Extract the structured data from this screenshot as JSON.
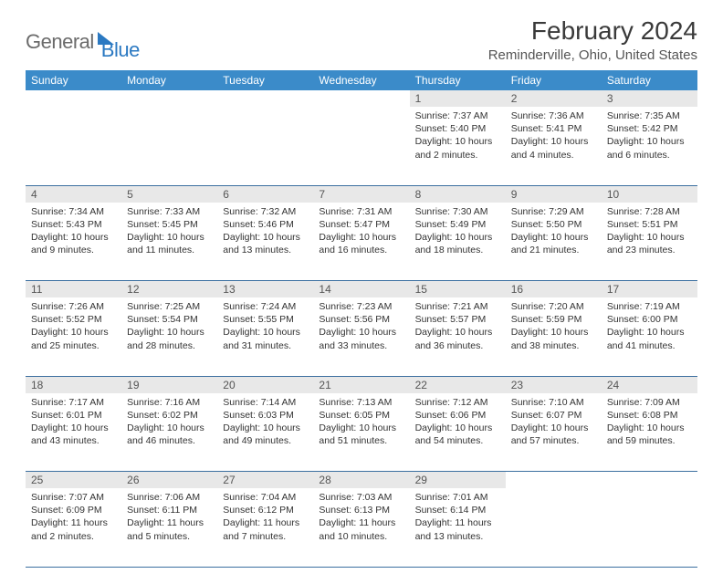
{
  "brand": {
    "part1": "General",
    "part2": "Blue"
  },
  "title": "February 2024",
  "location": "Reminderville, Ohio, United States",
  "colors": {
    "header_bg": "#3b8bc9",
    "header_text": "#ffffff",
    "daynum_bg": "#e8e8e8",
    "daynum_text": "#555555",
    "rule": "#3b6fa0",
    "body_text": "#333333",
    "brand_gray": "#6b6b6b",
    "brand_blue": "#2b79c2"
  },
  "weekdays": [
    "Sunday",
    "Monday",
    "Tuesday",
    "Wednesday",
    "Thursday",
    "Friday",
    "Saturday"
  ],
  "weeks": [
    [
      null,
      null,
      null,
      null,
      {
        "n": "1",
        "sr": "Sunrise: 7:37 AM",
        "ss": "Sunset: 5:40 PM",
        "dl": "Daylight: 10 hours and 2 minutes."
      },
      {
        "n": "2",
        "sr": "Sunrise: 7:36 AM",
        "ss": "Sunset: 5:41 PM",
        "dl": "Daylight: 10 hours and 4 minutes."
      },
      {
        "n": "3",
        "sr": "Sunrise: 7:35 AM",
        "ss": "Sunset: 5:42 PM",
        "dl": "Daylight: 10 hours and 6 minutes."
      }
    ],
    [
      {
        "n": "4",
        "sr": "Sunrise: 7:34 AM",
        "ss": "Sunset: 5:43 PM",
        "dl": "Daylight: 10 hours and 9 minutes."
      },
      {
        "n": "5",
        "sr": "Sunrise: 7:33 AM",
        "ss": "Sunset: 5:45 PM",
        "dl": "Daylight: 10 hours and 11 minutes."
      },
      {
        "n": "6",
        "sr": "Sunrise: 7:32 AM",
        "ss": "Sunset: 5:46 PM",
        "dl": "Daylight: 10 hours and 13 minutes."
      },
      {
        "n": "7",
        "sr": "Sunrise: 7:31 AM",
        "ss": "Sunset: 5:47 PM",
        "dl": "Daylight: 10 hours and 16 minutes."
      },
      {
        "n": "8",
        "sr": "Sunrise: 7:30 AM",
        "ss": "Sunset: 5:49 PM",
        "dl": "Daylight: 10 hours and 18 minutes."
      },
      {
        "n": "9",
        "sr": "Sunrise: 7:29 AM",
        "ss": "Sunset: 5:50 PM",
        "dl": "Daylight: 10 hours and 21 minutes."
      },
      {
        "n": "10",
        "sr": "Sunrise: 7:28 AM",
        "ss": "Sunset: 5:51 PM",
        "dl": "Daylight: 10 hours and 23 minutes."
      }
    ],
    [
      {
        "n": "11",
        "sr": "Sunrise: 7:26 AM",
        "ss": "Sunset: 5:52 PM",
        "dl": "Daylight: 10 hours and 25 minutes."
      },
      {
        "n": "12",
        "sr": "Sunrise: 7:25 AM",
        "ss": "Sunset: 5:54 PM",
        "dl": "Daylight: 10 hours and 28 minutes."
      },
      {
        "n": "13",
        "sr": "Sunrise: 7:24 AM",
        "ss": "Sunset: 5:55 PM",
        "dl": "Daylight: 10 hours and 31 minutes."
      },
      {
        "n": "14",
        "sr": "Sunrise: 7:23 AM",
        "ss": "Sunset: 5:56 PM",
        "dl": "Daylight: 10 hours and 33 minutes."
      },
      {
        "n": "15",
        "sr": "Sunrise: 7:21 AM",
        "ss": "Sunset: 5:57 PM",
        "dl": "Daylight: 10 hours and 36 minutes."
      },
      {
        "n": "16",
        "sr": "Sunrise: 7:20 AM",
        "ss": "Sunset: 5:59 PM",
        "dl": "Daylight: 10 hours and 38 minutes."
      },
      {
        "n": "17",
        "sr": "Sunrise: 7:19 AM",
        "ss": "Sunset: 6:00 PM",
        "dl": "Daylight: 10 hours and 41 minutes."
      }
    ],
    [
      {
        "n": "18",
        "sr": "Sunrise: 7:17 AM",
        "ss": "Sunset: 6:01 PM",
        "dl": "Daylight: 10 hours and 43 minutes."
      },
      {
        "n": "19",
        "sr": "Sunrise: 7:16 AM",
        "ss": "Sunset: 6:02 PM",
        "dl": "Daylight: 10 hours and 46 minutes."
      },
      {
        "n": "20",
        "sr": "Sunrise: 7:14 AM",
        "ss": "Sunset: 6:03 PM",
        "dl": "Daylight: 10 hours and 49 minutes."
      },
      {
        "n": "21",
        "sr": "Sunrise: 7:13 AM",
        "ss": "Sunset: 6:05 PM",
        "dl": "Daylight: 10 hours and 51 minutes."
      },
      {
        "n": "22",
        "sr": "Sunrise: 7:12 AM",
        "ss": "Sunset: 6:06 PM",
        "dl": "Daylight: 10 hours and 54 minutes."
      },
      {
        "n": "23",
        "sr": "Sunrise: 7:10 AM",
        "ss": "Sunset: 6:07 PM",
        "dl": "Daylight: 10 hours and 57 minutes."
      },
      {
        "n": "24",
        "sr": "Sunrise: 7:09 AM",
        "ss": "Sunset: 6:08 PM",
        "dl": "Daylight: 10 hours and 59 minutes."
      }
    ],
    [
      {
        "n": "25",
        "sr": "Sunrise: 7:07 AM",
        "ss": "Sunset: 6:09 PM",
        "dl": "Daylight: 11 hours and 2 minutes."
      },
      {
        "n": "26",
        "sr": "Sunrise: 7:06 AM",
        "ss": "Sunset: 6:11 PM",
        "dl": "Daylight: 11 hours and 5 minutes."
      },
      {
        "n": "27",
        "sr": "Sunrise: 7:04 AM",
        "ss": "Sunset: 6:12 PM",
        "dl": "Daylight: 11 hours and 7 minutes."
      },
      {
        "n": "28",
        "sr": "Sunrise: 7:03 AM",
        "ss": "Sunset: 6:13 PM",
        "dl": "Daylight: 11 hours and 10 minutes."
      },
      {
        "n": "29",
        "sr": "Sunrise: 7:01 AM",
        "ss": "Sunset: 6:14 PM",
        "dl": "Daylight: 11 hours and 13 minutes."
      },
      null,
      null
    ]
  ]
}
